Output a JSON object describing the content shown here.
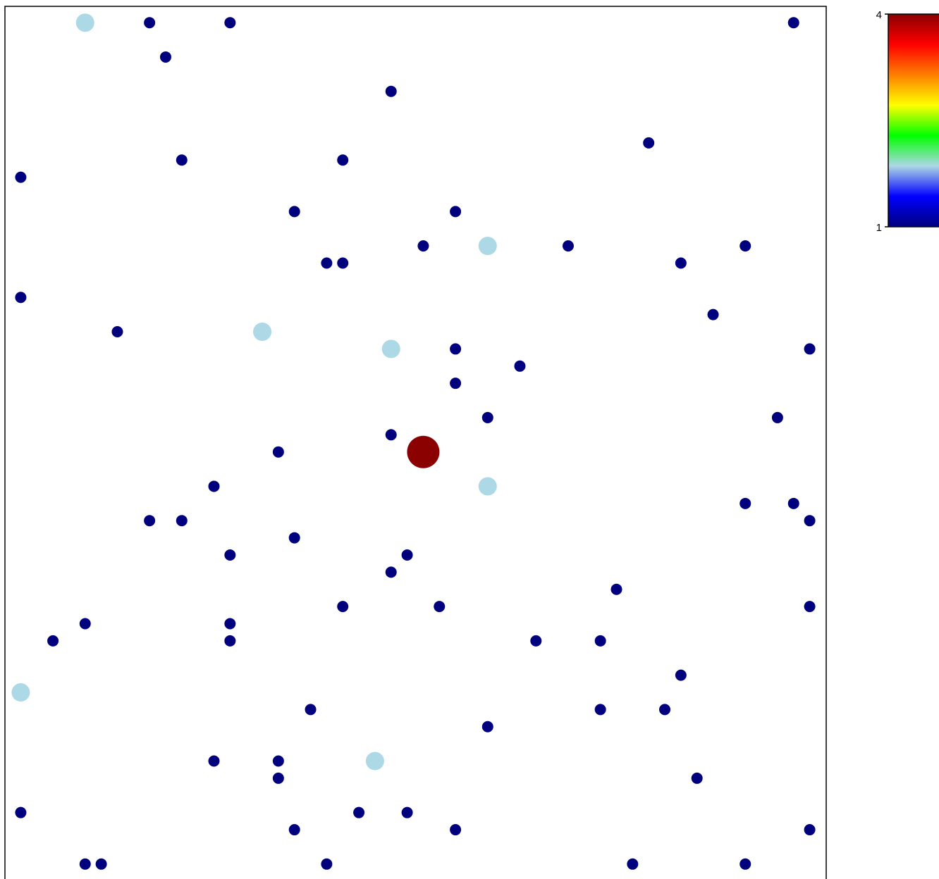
{
  "chart_data": {
    "type": "scatter",
    "title": "",
    "xlabel": "",
    "ylabel": "",
    "xlim": [
      0,
      1
    ],
    "ylim": [
      0,
      1
    ],
    "grid": false,
    "color_scale": {
      "min": 1,
      "max": 4,
      "min_label": "1",
      "max_label": "4",
      "colors": [
        "#00007f",
        "#0000ff",
        "#add8e6",
        "#00ff00",
        "#ffff00",
        "#ff7f00",
        "#ff0000",
        "#8b0000"
      ]
    },
    "points": [
      {
        "x": 0.09,
        "y": 0.99,
        "v": 2
      },
      {
        "x": 0.17,
        "y": 0.99,
        "v": 1
      },
      {
        "x": 0.27,
        "y": 0.99,
        "v": 1
      },
      {
        "x": 0.97,
        "y": 0.99,
        "v": 1
      },
      {
        "x": 0.19,
        "y": 0.95,
        "v": 1
      },
      {
        "x": 0.47,
        "y": 0.91,
        "v": 1
      },
      {
        "x": 0.79,
        "y": 0.85,
        "v": 1
      },
      {
        "x": 0.21,
        "y": 0.83,
        "v": 1
      },
      {
        "x": 0.41,
        "y": 0.83,
        "v": 1
      },
      {
        "x": 0.01,
        "y": 0.81,
        "v": 1
      },
      {
        "x": 0.35,
        "y": 0.77,
        "v": 1
      },
      {
        "x": 0.55,
        "y": 0.77,
        "v": 1
      },
      {
        "x": 0.51,
        "y": 0.73,
        "v": 1
      },
      {
        "x": 0.59,
        "y": 0.73,
        "v": 2
      },
      {
        "x": 0.69,
        "y": 0.73,
        "v": 1
      },
      {
        "x": 0.91,
        "y": 0.73,
        "v": 1
      },
      {
        "x": 0.39,
        "y": 0.71,
        "v": 1
      },
      {
        "x": 0.41,
        "y": 0.71,
        "v": 1
      },
      {
        "x": 0.83,
        "y": 0.71,
        "v": 1
      },
      {
        "x": 0.01,
        "y": 0.67,
        "v": 1
      },
      {
        "x": 0.87,
        "y": 0.65,
        "v": 1
      },
      {
        "x": 0.13,
        "y": 0.63,
        "v": 1
      },
      {
        "x": 0.31,
        "y": 0.63,
        "v": 2
      },
      {
        "x": 0.47,
        "y": 0.61,
        "v": 2
      },
      {
        "x": 0.55,
        "y": 0.61,
        "v": 1
      },
      {
        "x": 0.99,
        "y": 0.61,
        "v": 1
      },
      {
        "x": 0.63,
        "y": 0.59,
        "v": 1
      },
      {
        "x": 0.55,
        "y": 0.57,
        "v": 1
      },
      {
        "x": 0.59,
        "y": 0.53,
        "v": 1
      },
      {
        "x": 0.95,
        "y": 0.53,
        "v": 1
      },
      {
        "x": 0.47,
        "y": 0.51,
        "v": 1
      },
      {
        "x": 0.51,
        "y": 0.49,
        "v": 4
      },
      {
        "x": 0.33,
        "y": 0.49,
        "v": 1
      },
      {
        "x": 0.25,
        "y": 0.45,
        "v": 1
      },
      {
        "x": 0.59,
        "y": 0.45,
        "v": 2
      },
      {
        "x": 0.91,
        "y": 0.43,
        "v": 1
      },
      {
        "x": 0.97,
        "y": 0.43,
        "v": 1
      },
      {
        "x": 0.17,
        "y": 0.41,
        "v": 1
      },
      {
        "x": 0.21,
        "y": 0.41,
        "v": 1
      },
      {
        "x": 0.99,
        "y": 0.41,
        "v": 1
      },
      {
        "x": 0.35,
        "y": 0.39,
        "v": 1
      },
      {
        "x": 0.27,
        "y": 0.37,
        "v": 1
      },
      {
        "x": 0.49,
        "y": 0.37,
        "v": 1
      },
      {
        "x": 0.47,
        "y": 0.35,
        "v": 1
      },
      {
        "x": 0.75,
        "y": 0.33,
        "v": 1
      },
      {
        "x": 0.41,
        "y": 0.31,
        "v": 1
      },
      {
        "x": 0.53,
        "y": 0.31,
        "v": 1
      },
      {
        "x": 0.99,
        "y": 0.31,
        "v": 1
      },
      {
        "x": 0.09,
        "y": 0.29,
        "v": 1
      },
      {
        "x": 0.27,
        "y": 0.29,
        "v": 1
      },
      {
        "x": 0.05,
        "y": 0.27,
        "v": 1
      },
      {
        "x": 0.27,
        "y": 0.27,
        "v": 1
      },
      {
        "x": 0.65,
        "y": 0.27,
        "v": 1
      },
      {
        "x": 0.73,
        "y": 0.27,
        "v": 1
      },
      {
        "x": 0.83,
        "y": 0.23,
        "v": 1
      },
      {
        "x": 0.01,
        "y": 0.21,
        "v": 2
      },
      {
        "x": 0.37,
        "y": 0.19,
        "v": 1
      },
      {
        "x": 0.73,
        "y": 0.19,
        "v": 1
      },
      {
        "x": 0.81,
        "y": 0.19,
        "v": 1
      },
      {
        "x": 0.59,
        "y": 0.17,
        "v": 1
      },
      {
        "x": 0.25,
        "y": 0.13,
        "v": 1
      },
      {
        "x": 0.33,
        "y": 0.13,
        "v": 1
      },
      {
        "x": 0.45,
        "y": 0.13,
        "v": 2
      },
      {
        "x": 0.33,
        "y": 0.11,
        "v": 1
      },
      {
        "x": 0.85,
        "y": 0.11,
        "v": 1
      },
      {
        "x": 0.01,
        "y": 0.07,
        "v": 1
      },
      {
        "x": 0.43,
        "y": 0.07,
        "v": 1
      },
      {
        "x": 0.49,
        "y": 0.07,
        "v": 1
      },
      {
        "x": 0.35,
        "y": 0.05,
        "v": 1
      },
      {
        "x": 0.55,
        "y": 0.05,
        "v": 1
      },
      {
        "x": 0.99,
        "y": 0.05,
        "v": 1
      },
      {
        "x": 0.09,
        "y": 0.01,
        "v": 1
      },
      {
        "x": 0.11,
        "y": 0.01,
        "v": 1
      },
      {
        "x": 0.39,
        "y": 0.01,
        "v": 1
      },
      {
        "x": 0.77,
        "y": 0.01,
        "v": 1
      },
      {
        "x": 0.91,
        "y": 0.01,
        "v": 1
      }
    ]
  }
}
